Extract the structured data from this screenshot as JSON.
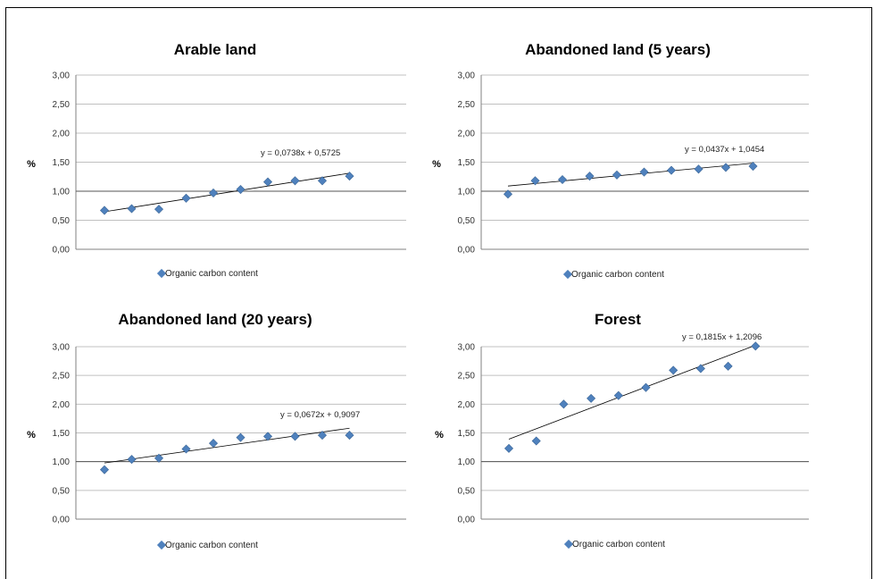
{
  "colors": {
    "marker": "#4F81BD",
    "marker_edge": "#3A6596",
    "grid": "#c0c0c0",
    "axis": "#808080",
    "trend": "#000000"
  },
  "chart_data": [
    {
      "type": "scatter",
      "title": "Arable land",
      "ylabel": "%",
      "ylim": [
        0,
        3
      ],
      "y_ticks": [
        "0,00",
        "0,50",
        "1,00",
        "1,50",
        "2,00",
        "2,50",
        "3,00"
      ],
      "x": [
        1,
        2,
        3,
        4,
        5,
        6,
        7,
        8,
        9,
        10
      ],
      "values": [
        0.67,
        0.7,
        0.69,
        0.88,
        0.97,
        1.03,
        1.16,
        1.18,
        1.18,
        1.26
      ],
      "legend": "Organic carbon content",
      "trendline": {
        "slope": 0.0738,
        "intercept": 0.5725,
        "label": "y = 0,0738x + 0,5725"
      }
    },
    {
      "type": "scatter",
      "title": "Abandoned land (5 years)",
      "ylabel": "%",
      "ylim": [
        0,
        3
      ],
      "y_ticks": [
        "0,00",
        "0,50",
        "1,00",
        "1,50",
        "2,00",
        "2,50",
        "3,00"
      ],
      "x": [
        1,
        2,
        3,
        4,
        5,
        6,
        7,
        8,
        9,
        10
      ],
      "values": [
        0.95,
        1.18,
        1.2,
        1.26,
        1.28,
        1.33,
        1.36,
        1.38,
        1.41,
        1.43
      ],
      "legend": "Organic carbon content",
      "trendline": {
        "slope": 0.0437,
        "intercept": 1.0454,
        "label": "y = 0,0437x + 1,0454"
      }
    },
    {
      "type": "scatter",
      "title": "Abandoned land (20 years)",
      "ylabel": "%",
      "ylim": [
        0,
        3
      ],
      "y_ticks": [
        "0,00",
        "0,50",
        "1,00",
        "1,50",
        "2,00",
        "2,50",
        "3,00"
      ],
      "x": [
        1,
        2,
        3,
        4,
        5,
        6,
        7,
        8,
        9,
        10
      ],
      "values": [
        0.86,
        1.04,
        1.06,
        1.22,
        1.32,
        1.42,
        1.44,
        1.44,
        1.46,
        1.46
      ],
      "legend": "Organic carbon content",
      "trendline": {
        "slope": 0.0672,
        "intercept": 0.9097,
        "label": "y = 0,0672x + 0,9097"
      }
    },
    {
      "type": "scatter",
      "title": "Forest",
      "ylabel": "%",
      "ylim": [
        0,
        3
      ],
      "y_ticks": [
        "0,00",
        "0,50",
        "1,00",
        "1,50",
        "2,00",
        "2,50",
        "3,00"
      ],
      "x": [
        1,
        2,
        3,
        4,
        5,
        6,
        7,
        8,
        9,
        10
      ],
      "values": [
        1.23,
        1.36,
        2.0,
        2.1,
        2.15,
        2.29,
        2.59,
        2.62,
        2.66,
        3.01
      ],
      "legend": "Organic carbon content",
      "trendline": {
        "slope": 0.1815,
        "intercept": 1.2096,
        "label": "y = 0,1815x + 1,2096"
      }
    }
  ]
}
